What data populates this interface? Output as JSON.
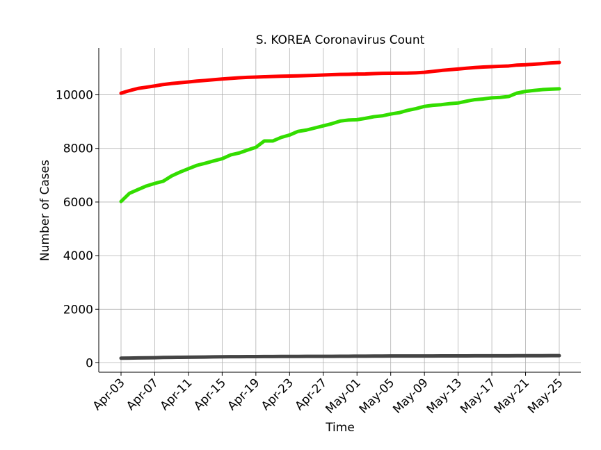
{
  "chart_data": {
    "type": "line",
    "title": "S. KOREA Coronavirus Count",
    "xlabel": "Time",
    "ylabel": "Number of Cases",
    "x_start": "2020-04-03",
    "x_tick_labels": [
      "Apr-03",
      "Apr-07",
      "Apr-11",
      "Apr-15",
      "Apr-19",
      "Apr-23",
      "Apr-27",
      "May-01",
      "May-05",
      "May-09",
      "May-13",
      "May-17",
      "May-21",
      "May-25"
    ],
    "y_ticks": [
      0,
      2000,
      4000,
      6000,
      8000,
      10000
    ],
    "ylim": [
      -350,
      11750
    ],
    "grid": true,
    "x": [
      "Apr-03",
      "Apr-04",
      "Apr-05",
      "Apr-06",
      "Apr-07",
      "Apr-08",
      "Apr-09",
      "Apr-10",
      "Apr-11",
      "Apr-12",
      "Apr-13",
      "Apr-14",
      "Apr-15",
      "Apr-16",
      "Apr-17",
      "Apr-18",
      "Apr-19",
      "Apr-20",
      "Apr-21",
      "Apr-22",
      "Apr-23",
      "Apr-24",
      "Apr-25",
      "Apr-26",
      "Apr-27",
      "Apr-28",
      "Apr-29",
      "Apr-30",
      "May-01",
      "May-02",
      "May-03",
      "May-04",
      "May-05",
      "May-06",
      "May-07",
      "May-08",
      "May-09",
      "May-10",
      "May-11",
      "May-12",
      "May-13",
      "May-14",
      "May-15",
      "May-16",
      "May-17",
      "May-18",
      "May-19",
      "May-20",
      "May-21",
      "May-22",
      "May-23",
      "May-24",
      "May-25"
    ],
    "series": [
      {
        "color": "#ff0000",
        "values": [
          10062,
          10156,
          10237,
          10284,
          10331,
          10384,
          10423,
          10450,
          10480,
          10512,
          10537,
          10564,
          10591,
          10613,
          10635,
          10653,
          10661,
          10674,
          10683,
          10694,
          10702,
          10708,
          10718,
          10728,
          10738,
          10752,
          10761,
          10765,
          10774,
          10780,
          10793,
          10801,
          10804,
          10806,
          10810,
          10822,
          10840,
          10874,
          10909,
          10936,
          10962,
          10991,
          11018,
          11037,
          11050,
          11065,
          11078,
          11110,
          11122,
          11142,
          11165,
          11190,
          11206
        ]
      },
      {
        "color": "#33dd00",
        "values": [
          6021,
          6325,
          6463,
          6598,
          6694,
          6776,
          6973,
          7117,
          7243,
          7368,
          7447,
          7534,
          7616,
          7757,
          7829,
          7937,
          8042,
          8277,
          8277,
          8411,
          8501,
          8635,
          8686,
          8764,
          8842,
          8922,
          9021,
          9059,
          9072,
          9123,
          9183,
          9217,
          9283,
          9333,
          9419,
          9484,
          9568,
          9610,
          9632,
          9671,
          9695,
          9762,
          9821,
          9847,
          9888,
          9904,
          9938,
          10066,
          10127,
          10162,
          10194,
          10213,
          10226
        ]
      },
      {
        "color": "#444444",
        "values": [
          174,
          177,
          183,
          186,
          192,
          200,
          204,
          208,
          211,
          214,
          217,
          222,
          225,
          229,
          230,
          232,
          234,
          236,
          237,
          238,
          240,
          240,
          242,
          243,
          243,
          244,
          246,
          247,
          248,
          250,
          252,
          254,
          255,
          255,
          256,
          256,
          256,
          256,
          258,
          259,
          260,
          260,
          262,
          263,
          263,
          263,
          263,
          264,
          266,
          266,
          267,
          269,
          269
        ]
      }
    ]
  }
}
